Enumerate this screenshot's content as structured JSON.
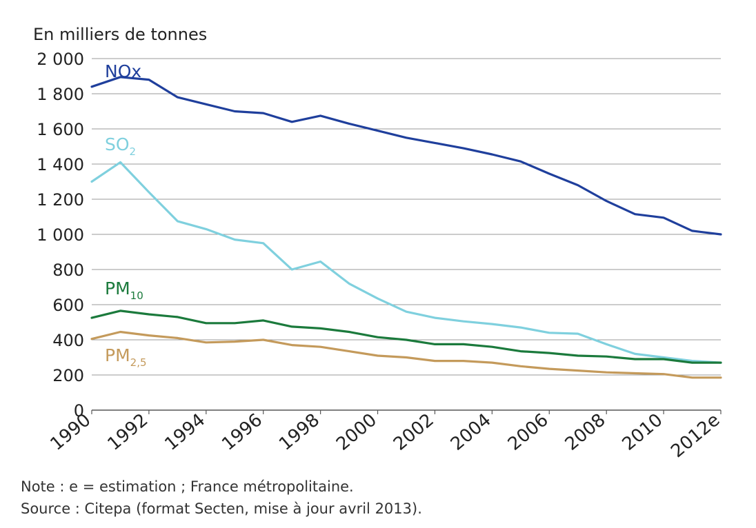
{
  "chart_data": {
    "type": "line",
    "ylabel": "En milliers de tonnes",
    "ylim": [
      0,
      2000
    ],
    "yticks": [
      0,
      200,
      400,
      600,
      800,
      1000,
      1200,
      1400,
      1600,
      1800,
      2000
    ],
    "ytick_labels": [
      "0",
      "200",
      "400",
      "600",
      "800",
      "1 000",
      "1 200",
      "1 400",
      "1 600",
      "1 800",
      "2 000"
    ],
    "x": [
      "1990",
      "1991",
      "1992",
      "1993",
      "1994",
      "1995",
      "1996",
      "1997",
      "1998",
      "1999",
      "2000",
      "2001",
      "2002",
      "2003",
      "2004",
      "2005",
      "2006",
      "2007",
      "2008",
      "2009",
      "2010",
      "2011",
      "2012e"
    ],
    "xtick_labels": [
      "1990",
      "1992",
      "1994",
      "1996",
      "1998",
      "2000",
      "2002",
      "2004",
      "2006",
      "2008",
      "2010",
      "2012e"
    ],
    "grid": true,
    "series": [
      {
        "name": "NOx",
        "label_main": "NOx",
        "label_sub": "",
        "color": "#1f3f9c",
        "values": [
          1840,
          1895,
          1880,
          1780,
          1740,
          1700,
          1690,
          1640,
          1675,
          1630,
          1590,
          1550,
          1520,
          1490,
          1455,
          1415,
          1345,
          1280,
          1190,
          1115,
          1095,
          1020,
          1000
        ]
      },
      {
        "name": "SO2",
        "label_main": "SO",
        "label_sub": "2",
        "color": "#7fd0de",
        "values": [
          1300,
          1410,
          1240,
          1075,
          1030,
          970,
          950,
          800,
          845,
          720,
          635,
          560,
          525,
          505,
          490,
          470,
          440,
          435,
          375,
          320,
          300,
          280,
          270
        ]
      },
      {
        "name": "PM10",
        "label_main": "PM",
        "label_sub": "10",
        "color": "#1b7a3c",
        "values": [
          525,
          565,
          545,
          530,
          495,
          495,
          510,
          475,
          465,
          445,
          415,
          400,
          375,
          375,
          360,
          335,
          325,
          310,
          305,
          290,
          290,
          270,
          270
        ]
      },
      {
        "name": "PM2,5",
        "label_main": "PM",
        "label_sub": "2,5",
        "color": "#c49a5b",
        "values": [
          405,
          445,
          425,
          410,
          385,
          390,
          400,
          370,
          360,
          335,
          310,
          300,
          280,
          280,
          270,
          250,
          235,
          225,
          215,
          210,
          205,
          185,
          185
        ]
      }
    ]
  },
  "notes": {
    "line1": "Note : e = estimation ; France métropolitaine.",
    "line2": "Source : Citepa (format Secten, mise à jour avril 2013)."
  }
}
